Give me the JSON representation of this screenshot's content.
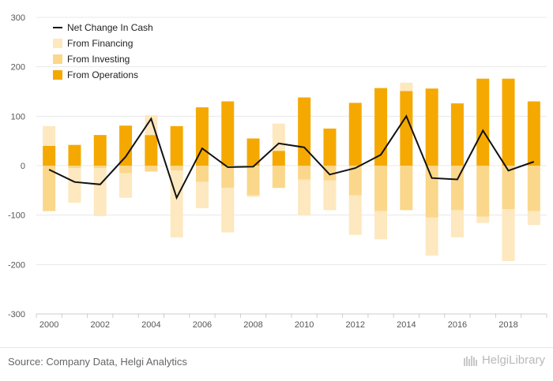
{
  "chart_data": {
    "type": "bar",
    "categories": [
      "2000",
      "2001",
      "2002",
      "2003",
      "2004",
      "2005",
      "2006",
      "2007",
      "2008",
      "2009",
      "2010",
      "2011",
      "2012",
      "2013",
      "2014",
      "2015",
      "2016",
      "2017",
      "2018",
      "2019"
    ],
    "x_tick_labels": [
      "2000",
      "2002",
      "2004",
      "2006",
      "2008",
      "2010",
      "2012",
      "2014",
      "2016",
      "2018"
    ],
    "y_ticks": [
      300,
      200,
      100,
      0,
      -100,
      -200,
      -300
    ],
    "ylim": [
      -300,
      300
    ],
    "stacked": true,
    "series": [
      {
        "name": "From Operations",
        "kind": "bar",
        "values": [
          40,
          42,
          62,
          81,
          62,
          80,
          118,
          130,
          55,
          30,
          138,
          75,
          127,
          157,
          151,
          156,
          126,
          176,
          176,
          130
        ]
      },
      {
        "name": "From Investing",
        "kind": "bar",
        "values": [
          -92,
          -5,
          -5,
          -15,
          -12,
          -10,
          -33,
          -45,
          -60,
          -45,
          -28,
          -30,
          -60,
          -92,
          -90,
          -105,
          -90,
          -103,
          -88,
          -92
        ]
      },
      {
        "name": "From Financing",
        "kind": "bar",
        "values": [
          40,
          -70,
          -97,
          -50,
          40,
          -135,
          -53,
          -90,
          -3,
          55,
          -73,
          -60,
          -80,
          -57,
          17,
          -77,
          -55,
          -13,
          -105,
          -28
        ]
      },
      {
        "name": "Net Change In Cash",
        "kind": "line",
        "values": [
          -8,
          -33,
          -38,
          18,
          95,
          -65,
          35,
          -3,
          -2,
          45,
          37,
          -18,
          -5,
          22,
          100,
          -25,
          -28,
          71,
          -10,
          8
        ]
      }
    ],
    "legend": {
      "placement": "top-left",
      "entries": [
        "Net Change In Cash",
        "From Financing",
        "From Investing",
        "From Operations"
      ]
    },
    "colors": {
      "From Operations": "#f5a900",
      "From Investing": "#fad78a",
      "From Financing": "#fde8bf",
      "Net Change In Cash": "#111111",
      "grid": "#e8e8e8",
      "axis": "#cccccc"
    },
    "grid": true
  },
  "source": "Source: Company Data, Helgi Analytics",
  "logo": {
    "text": "HelgiLibrary",
    "icon": "library-logo-icon"
  }
}
